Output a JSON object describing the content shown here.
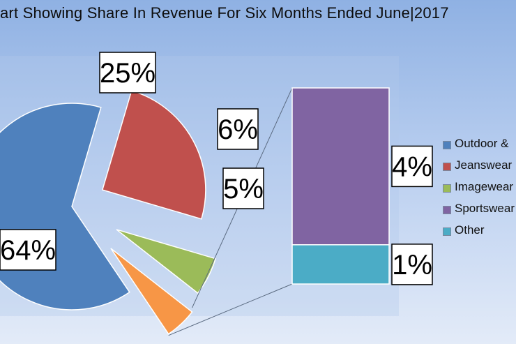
{
  "chart_data": {
    "type": "pie",
    "title": "art Showing Share In Revenue For Six Months Ended June|2017",
    "slices": [
      {
        "name": "Outdoor &",
        "value": 64,
        "label": "64%",
        "color": "#4f81bd"
      },
      {
        "name": "Jeanswear",
        "value": 25,
        "label": "25%",
        "color": "#c0504d"
      },
      {
        "name": "Imagewear",
        "value": 6,
        "label": "6%",
        "color": "#9bbb59"
      },
      {
        "name": "Other",
        "value": 5,
        "label": "5%",
        "color": "#f79646"
      }
    ],
    "breakout": {
      "of": "Other",
      "type": "stacked-bar",
      "segments": [
        {
          "name": "Sportswear",
          "value": 4,
          "label": "4%",
          "color": "#8064a2"
        },
        {
          "name": "Other",
          "value": 1,
          "label": "1%",
          "color": "#4bacc6"
        }
      ]
    },
    "legend": {
      "position": "right",
      "items": [
        {
          "label": "Outdoor &",
          "color": "#4f81bd"
        },
        {
          "label": "Jeanswear",
          "color": "#c0504d"
        },
        {
          "label": "Imagewear",
          "color": "#9bbb59"
        },
        {
          "label": "Sportswear",
          "color": "#8064a2"
        },
        {
          "label": "Other",
          "color": "#4bacc6"
        }
      ]
    }
  }
}
